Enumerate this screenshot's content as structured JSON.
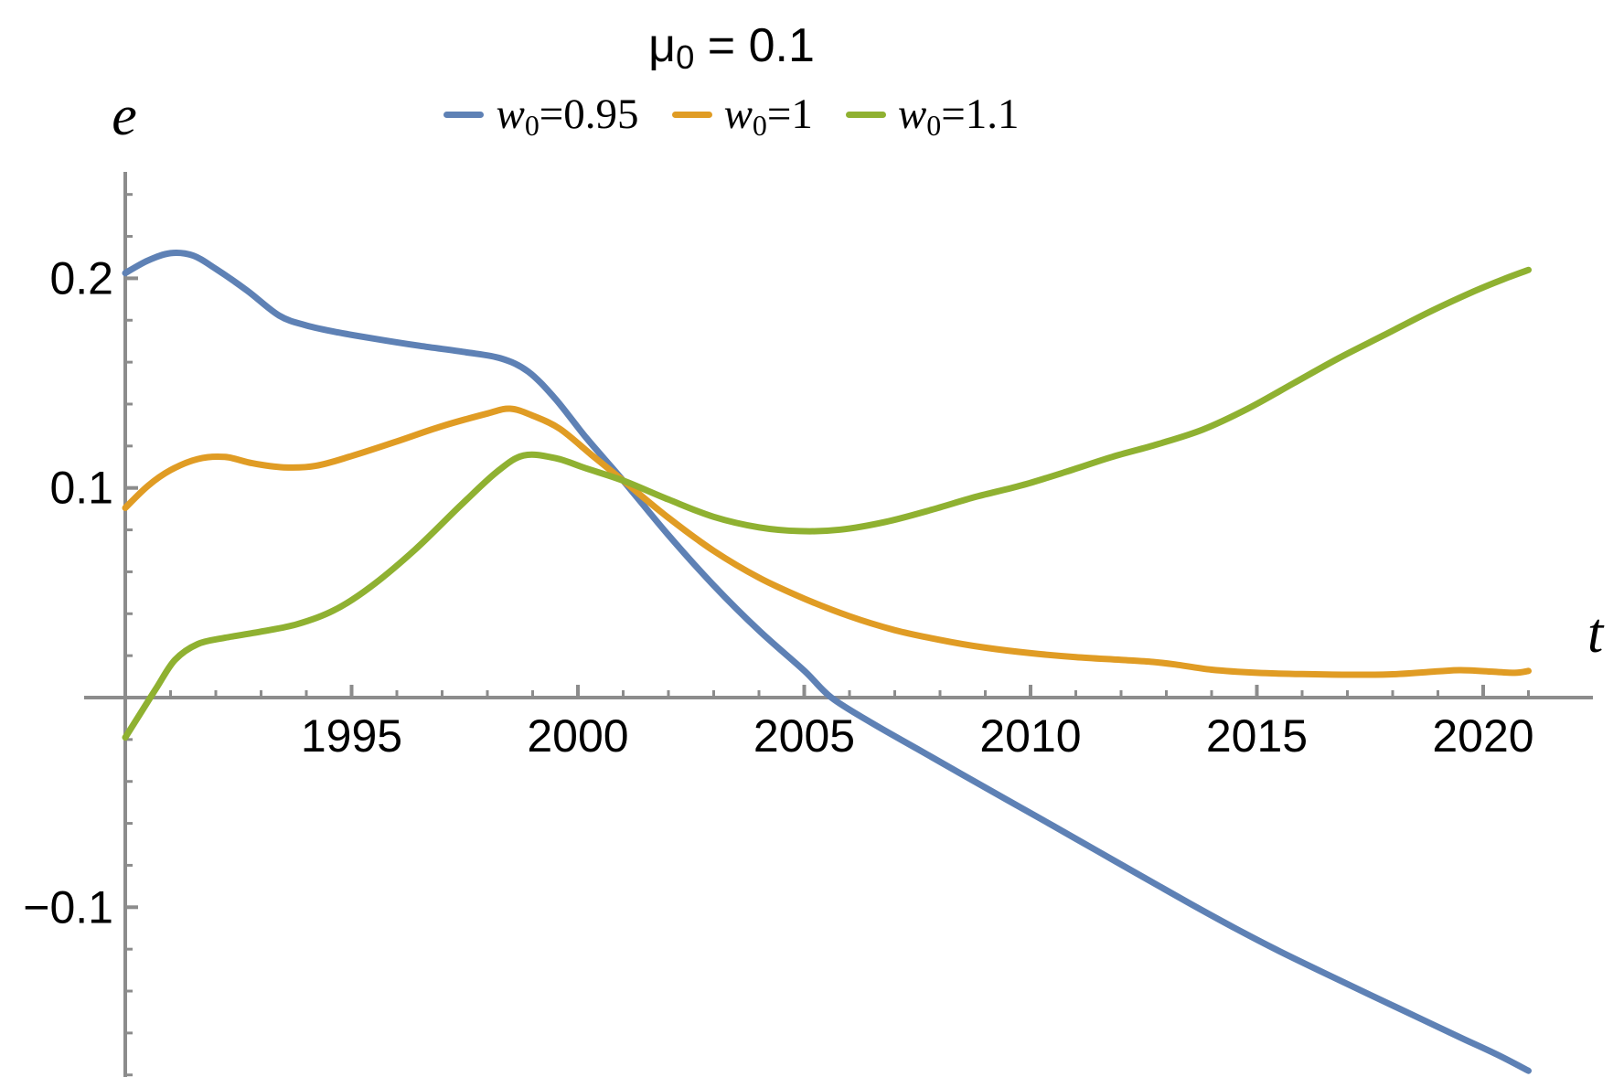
{
  "title": {
    "base": "μ",
    "sub": "0",
    "rest": " = 0.1"
  },
  "legend": {
    "items": [
      {
        "base": "w",
        "sub": "0",
        "value": "=0.95",
        "color": "#5E81B5"
      },
      {
        "base": "w",
        "sub": "0",
        "value": "=1",
        "color": "#E09C24"
      },
      {
        "base": "w",
        "sub": "0",
        "value": "=1.1",
        "color": "#8FB131"
      }
    ]
  },
  "chart_data": {
    "type": "line",
    "title": "μ0 = 0.1",
    "xlabel": "t",
    "ylabel": "e",
    "xlim": [
      1990,
      2022.5
    ],
    "ylim": [
      -0.185,
      0.251
    ],
    "grid": false,
    "legend_position": "top-center",
    "axis_color": "#8C8C8C",
    "tick_label_color": "#000000",
    "x_ticks": {
      "major": [
        1995,
        2000,
        2005,
        2010,
        2015,
        2020
      ],
      "major_labels": [
        "1995",
        "2000",
        "2005",
        "2010",
        "2015",
        "2020"
      ],
      "minor_start": 1991,
      "minor_end": 2021,
      "minor_step": 1
    },
    "y_ticks": {
      "major": [
        0.2,
        0.1,
        -0.1
      ],
      "major_labels": [
        "0.2",
        "0.1",
        "−0.1"
      ],
      "minor_start": -0.18,
      "minor_end": 0.24,
      "minor_step": 0.02
    },
    "series": [
      {
        "name": "w0=0.95",
        "color": "#5E81B5",
        "points": [
          [
            1990,
            0.2025
          ],
          [
            1990.5,
            0.2085
          ],
          [
            1991,
            0.212
          ],
          [
            1991.5,
            0.2108
          ],
          [
            1992,
            0.2045
          ],
          [
            1992.7,
            0.194
          ],
          [
            1993.4,
            0.1822
          ],
          [
            1994,
            0.1775
          ],
          [
            1994.7,
            0.1742
          ],
          [
            1995.5,
            0.1712
          ],
          [
            1996.5,
            0.1678
          ],
          [
            1997.5,
            0.1648
          ],
          [
            1998.3,
            0.1618
          ],
          [
            1998.9,
            0.1555
          ],
          [
            1999.5,
            0.1425
          ],
          [
            2000.2,
            0.1235
          ],
          [
            2001,
            0.1035
          ],
          [
            2002,
            0.0775
          ],
          [
            2003,
            0.0535
          ],
          [
            2004,
            0.032
          ],
          [
            2005,
            0.0128
          ],
          [
            2005.6,
            0.0
          ],
          [
            2006.5,
            -0.0122
          ],
          [
            2007.5,
            -0.0245
          ],
          [
            2008.5,
            -0.0368
          ],
          [
            2009.5,
            -0.049
          ],
          [
            2010.5,
            -0.0612
          ],
          [
            2011.5,
            -0.0735
          ],
          [
            2012.5,
            -0.0858
          ],
          [
            2013.5,
            -0.098
          ],
          [
            2014.5,
            -0.1098
          ],
          [
            2015.5,
            -0.121
          ],
          [
            2016.5,
            -0.1315
          ],
          [
            2017.5,
            -0.1418
          ],
          [
            2018.5,
            -0.152
          ],
          [
            2019.5,
            -0.1622
          ],
          [
            2020.3,
            -0.1702
          ],
          [
            2021,
            -0.178
          ]
        ]
      },
      {
        "name": "w0=1",
        "color": "#E09C24",
        "points": [
          [
            1990,
            0.0905
          ],
          [
            1990.5,
            0.101
          ],
          [
            1991,
            0.1085
          ],
          [
            1991.6,
            0.1138
          ],
          [
            1992.2,
            0.1148
          ],
          [
            1992.8,
            0.1118
          ],
          [
            1993.5,
            0.1098
          ],
          [
            1994.2,
            0.1105
          ],
          [
            1995,
            0.1152
          ],
          [
            1996,
            0.1222
          ],
          [
            1997,
            0.1295
          ],
          [
            1998,
            0.1355
          ],
          [
            1998.5,
            0.1378
          ],
          [
            1999,
            0.1345
          ],
          [
            1999.6,
            0.1282
          ],
          [
            2000.3,
            0.1158
          ],
          [
            2001,
            0.1035
          ],
          [
            2002,
            0.0858
          ],
          [
            2003,
            0.07
          ],
          [
            2004,
            0.0572
          ],
          [
            2005,
            0.0472
          ],
          [
            2006,
            0.0388
          ],
          [
            2007,
            0.0322
          ],
          [
            2008,
            0.0275
          ],
          [
            2009,
            0.0238
          ],
          [
            2010,
            0.0212
          ],
          [
            2011,
            0.0193
          ],
          [
            2012,
            0.018
          ],
          [
            2012.7,
            0.017
          ],
          [
            2013.2,
            0.0158
          ],
          [
            2014,
            0.0133
          ],
          [
            2015,
            0.0118
          ],
          [
            2016,
            0.0112
          ],
          [
            2017,
            0.0109
          ],
          [
            2018,
            0.0111
          ],
          [
            2019,
            0.0125
          ],
          [
            2019.5,
            0.0131
          ],
          [
            2020.2,
            0.0124
          ],
          [
            2020.7,
            0.0118
          ],
          [
            2021,
            0.0127
          ]
        ]
      },
      {
        "name": "w0=1.1",
        "color": "#8FB131",
        "points": [
          [
            1990,
            -0.019
          ],
          [
            1990.35,
            -0.007
          ],
          [
            1990.7,
            0.005
          ],
          [
            1991.1,
            0.018
          ],
          [
            1991.6,
            0.0255
          ],
          [
            1992.2,
            0.0285
          ],
          [
            1993,
            0.0315
          ],
          [
            1993.8,
            0.035
          ],
          [
            1994.6,
            0.0415
          ],
          [
            1995.4,
            0.0525
          ],
          [
            1996.4,
            0.0705
          ],
          [
            1997.4,
            0.0915
          ],
          [
            1998.2,
            0.1075
          ],
          [
            1998.8,
            0.1155
          ],
          [
            1999.5,
            0.1142
          ],
          [
            2000.2,
            0.1092
          ],
          [
            2001,
            0.1035
          ],
          [
            2002,
            0.0945
          ],
          [
            2003,
            0.0862
          ],
          [
            2004,
            0.0812
          ],
          [
            2004.9,
            0.0794
          ],
          [
            2005.8,
            0.0801
          ],
          [
            2006.8,
            0.0838
          ],
          [
            2007.8,
            0.0895
          ],
          [
            2008.8,
            0.0958
          ],
          [
            2009.8,
            0.1012
          ],
          [
            2010.8,
            0.1078
          ],
          [
            2011.8,
            0.1148
          ],
          [
            2012.8,
            0.1208
          ],
          [
            2013.8,
            0.1278
          ],
          [
            2014.8,
            0.1378
          ],
          [
            2015.8,
            0.1498
          ],
          [
            2016.8,
            0.1618
          ],
          [
            2017.8,
            0.1728
          ],
          [
            2018.8,
            0.1838
          ],
          [
            2019.8,
            0.1938
          ],
          [
            2020.5,
            0.2
          ],
          [
            2021,
            0.204
          ]
        ]
      }
    ]
  }
}
